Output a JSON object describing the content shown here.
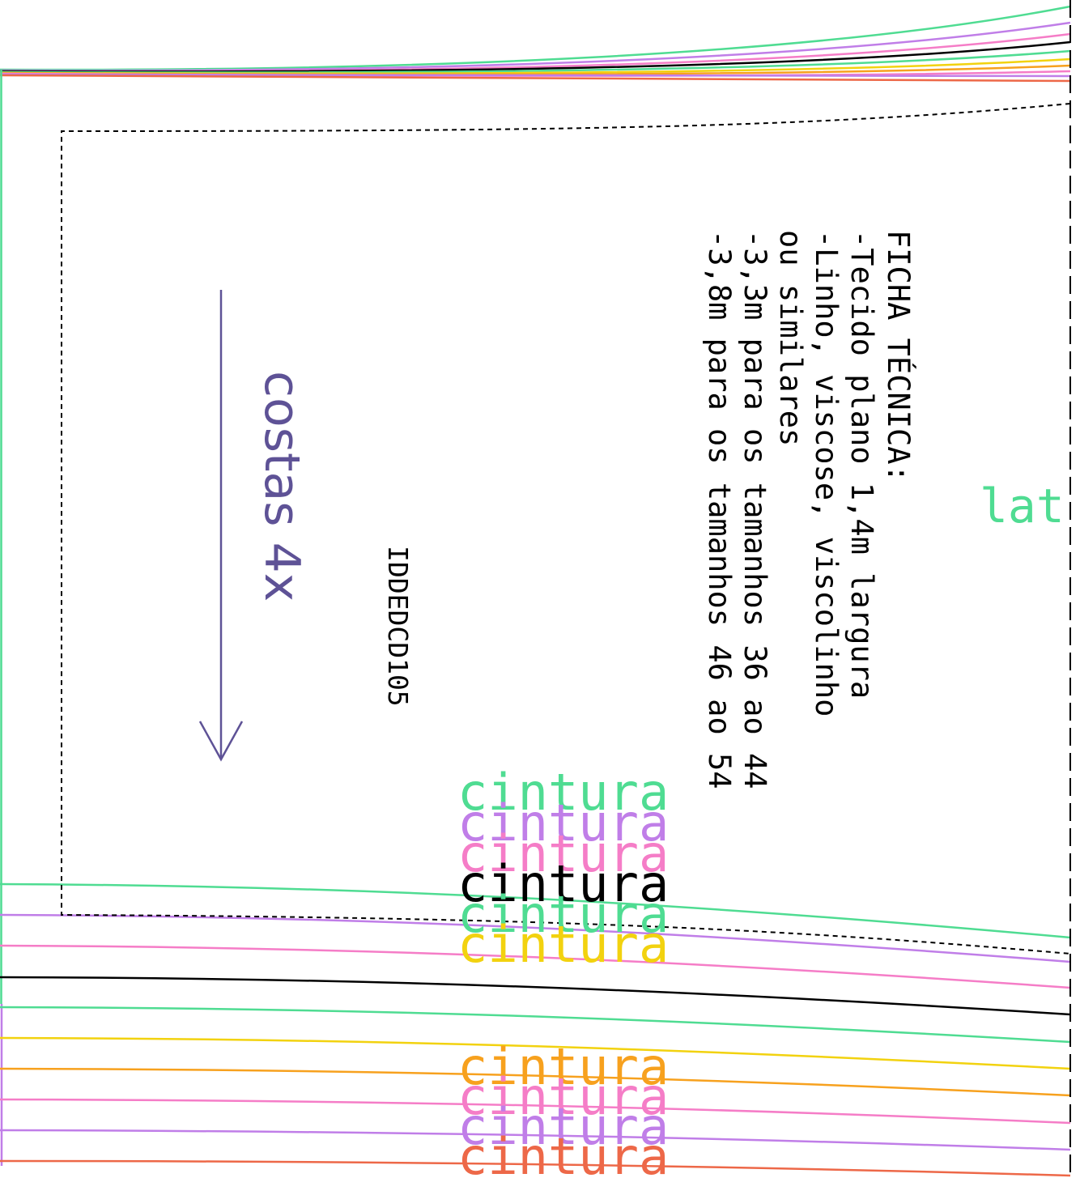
{
  "piece": {
    "label": "costas 4x",
    "code": "IDDEDCD105",
    "side_label": "lat"
  },
  "ficha": {
    "lines": [
      "FICHA TÉCNICA:",
      "-Tecido plano 1,4m largura",
      "-Linho, viscose, viscolinho",
      "ou similares",
      "-3,3m para os tamanhos 36 ao 44",
      "-3,8m para os tamanhos 46 ao 54"
    ]
  },
  "waist_labels": [
    {
      "text": "cintura",
      "color": "#4fdc92"
    },
    {
      "text": "cintura",
      "color": "#c07ee8"
    },
    {
      "text": "cintura",
      "color": "#f57dc7"
    },
    {
      "text": "cintura",
      "color": "#000000"
    },
    {
      "text": "cintura",
      "color": "#4fdc92"
    },
    {
      "text": "cintura",
      "color": "#f2d20f"
    },
    {
      "text": "cintura",
      "color": "#f7a11e"
    },
    {
      "text": "cintura",
      "color": "#f57dc7"
    },
    {
      "text": "cintura",
      "color": "#c07ee8"
    },
    {
      "text": "cintura",
      "color": "#ed6848"
    }
  ],
  "colors": {
    "green": "#4fdc92",
    "purple": "#c07ee8",
    "pink": "#f57dc7",
    "black": "#000000",
    "yellow": "#f2d20f",
    "orange": "#f7a11e",
    "red": "#ed6848",
    "grainline": "#5e5296"
  }
}
